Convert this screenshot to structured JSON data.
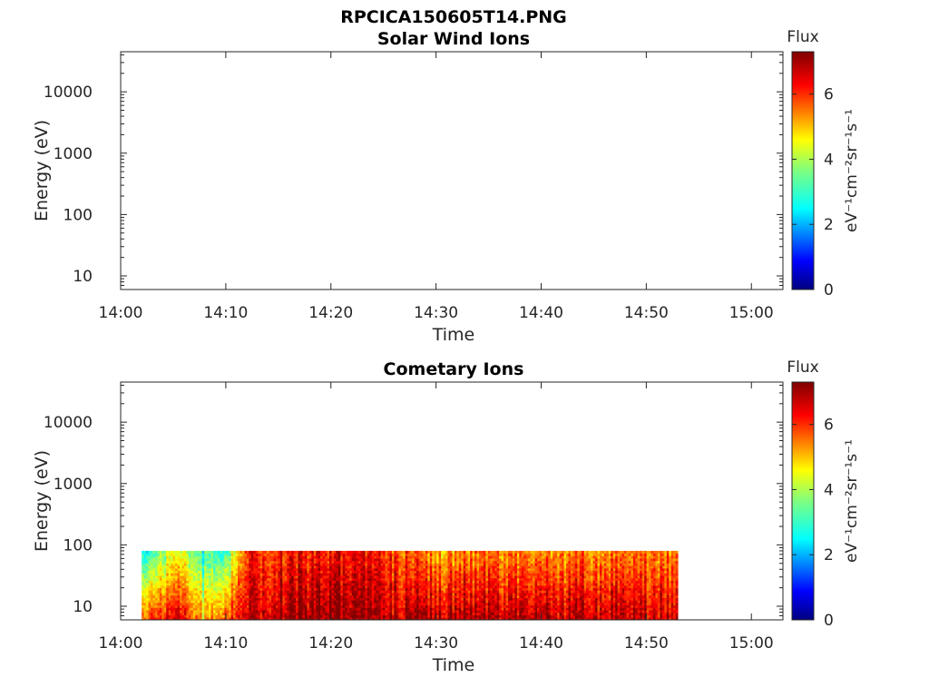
{
  "figure": {
    "title": "RPCICA150605T14.PNG"
  },
  "chart_data": [
    {
      "type": "heatmap",
      "title": "Solar Wind Ions",
      "xlabel": "Time",
      "ylabel": "Energy (eV)",
      "x_ticks": [
        "14:00",
        "14:10",
        "14:20",
        "14:30",
        "14:40",
        "14:50",
        "15:00"
      ],
      "y_ticks": [
        "10",
        "100",
        "1000",
        "10000"
      ],
      "xlim": [
        "14:00",
        "15:03"
      ],
      "ylim": [
        6,
        45000
      ],
      "y_scale": "log",
      "colorbar": {
        "title": "Flux",
        "label": "eV⁻¹cm⁻²sr⁻¹s⁻¹",
        "ticks": [
          "0",
          "2",
          "4",
          "6"
        ],
        "range": [
          0,
          7.3
        ],
        "colormap": "jet"
      },
      "data": []
    },
    {
      "type": "heatmap",
      "title": "Cometary Ions",
      "xlabel": "Time",
      "ylabel": "Energy (eV)",
      "x_ticks": [
        "14:00",
        "14:10",
        "14:20",
        "14:30",
        "14:40",
        "14:50",
        "15:00"
      ],
      "y_ticks": [
        "10",
        "100",
        "1000",
        "10000"
      ],
      "xlim": [
        "14:00",
        "15:03"
      ],
      "ylim": [
        6,
        45000
      ],
      "y_scale": "log",
      "colorbar": {
        "title": "Flux",
        "label": "eV⁻¹cm⁻²sr⁻¹s⁻¹",
        "ticks": [
          "0",
          "2",
          "4",
          "6"
        ],
        "range": [
          0,
          7.3
        ],
        "colormap": "jet"
      },
      "data_extent": {
        "time_start": "14:02",
        "time_end": "14:53",
        "energy_min": 6,
        "energy_max": 80
      },
      "flux_profile": [
        {
          "time": "14:02",
          "flux_low_energy": 5.5,
          "flux_high_energy": 2.5
        },
        {
          "time": "14:05",
          "flux_low_energy": 6.8,
          "flux_high_energy": 4.5
        },
        {
          "time": "14:08",
          "flux_low_energy": 5.0,
          "flux_high_energy": 2.8
        },
        {
          "time": "14:10",
          "flux_low_energy": 5.8,
          "flux_high_energy": 3.2
        },
        {
          "time": "14:12",
          "flux_low_energy": 6.8,
          "flux_high_energy": 6.2
        },
        {
          "time": "14:15",
          "flux_low_energy": 7.0,
          "flux_high_energy": 6.0
        },
        {
          "time": "14:20",
          "flux_low_energy": 7.2,
          "flux_high_energy": 6.3
        },
        {
          "time": "14:25",
          "flux_low_energy": 6.8,
          "flux_high_energy": 6.0
        },
        {
          "time": "14:30",
          "flux_low_energy": 7.0,
          "flux_high_energy": 5.2
        },
        {
          "time": "14:35",
          "flux_low_energy": 6.9,
          "flux_high_energy": 5.5
        },
        {
          "time": "14:40",
          "flux_low_energy": 6.8,
          "flux_high_energy": 5.3
        },
        {
          "time": "14:45",
          "flux_low_energy": 6.9,
          "flux_high_energy": 5.4
        },
        {
          "time": "14:50",
          "flux_low_energy": 6.8,
          "flux_high_energy": 5.6
        },
        {
          "time": "14:53",
          "flux_low_energy": 6.7,
          "flux_high_energy": 5.5
        }
      ]
    }
  ]
}
